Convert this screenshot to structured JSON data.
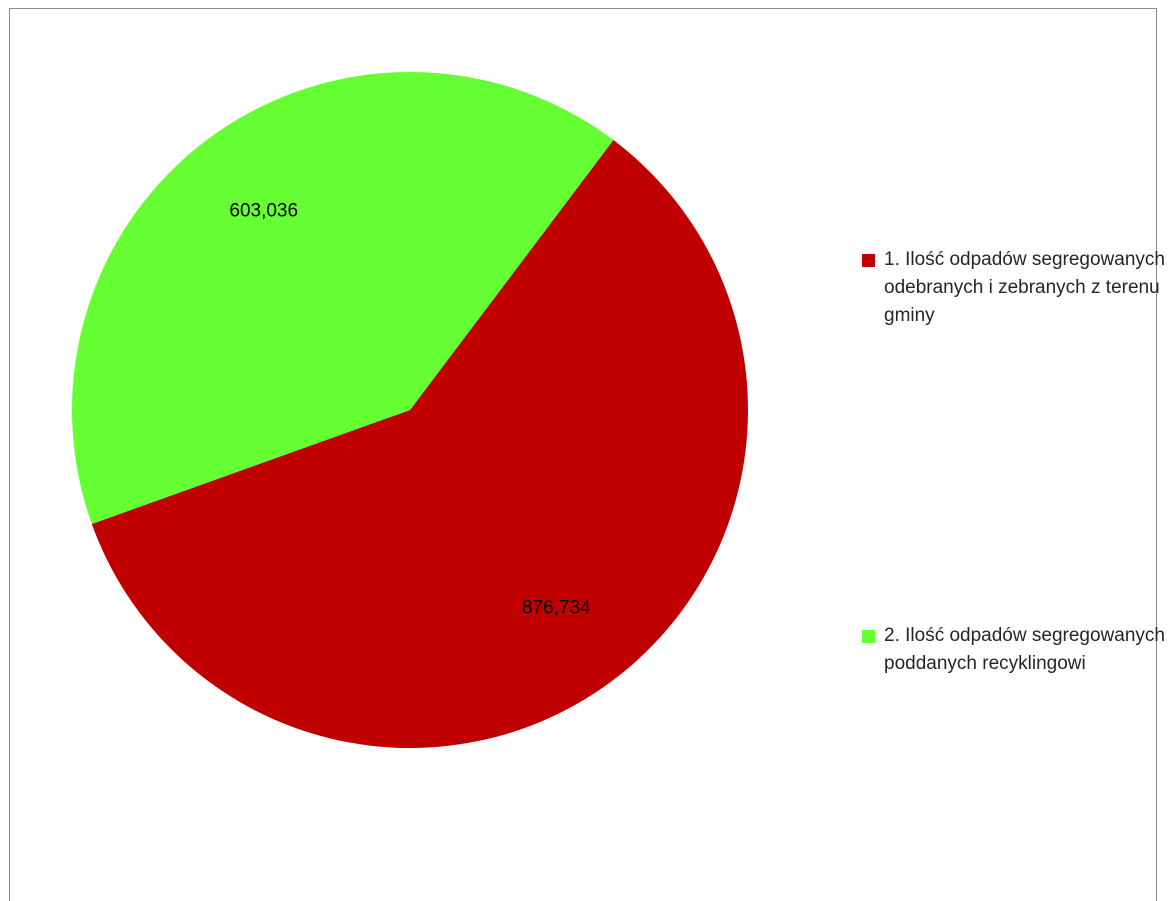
{
  "chart_data": {
    "type": "pie",
    "categories": [
      "1. Ilość odpadów segregowanych odebranych i zebranych z terenu gminy",
      "2. Ilość odpadów segregowanych poddanych recyklingowi"
    ],
    "values": [
      876.734,
      603.036
    ],
    "value_labels": [
      "876,734",
      "603,036"
    ],
    "colors": [
      "#c00000",
      "#66ff33"
    ],
    "legend": {
      "position": "right",
      "items": [
        {
          "label": "1. Ilość odpadów segregowanych odebranych i zebranych z terenu gminy",
          "color": "#c00000"
        },
        {
          "label": "2. Ilość odpadów segregowanych poddanych recyklingowi",
          "color": "#66ff33"
        }
      ]
    },
    "title": ""
  }
}
